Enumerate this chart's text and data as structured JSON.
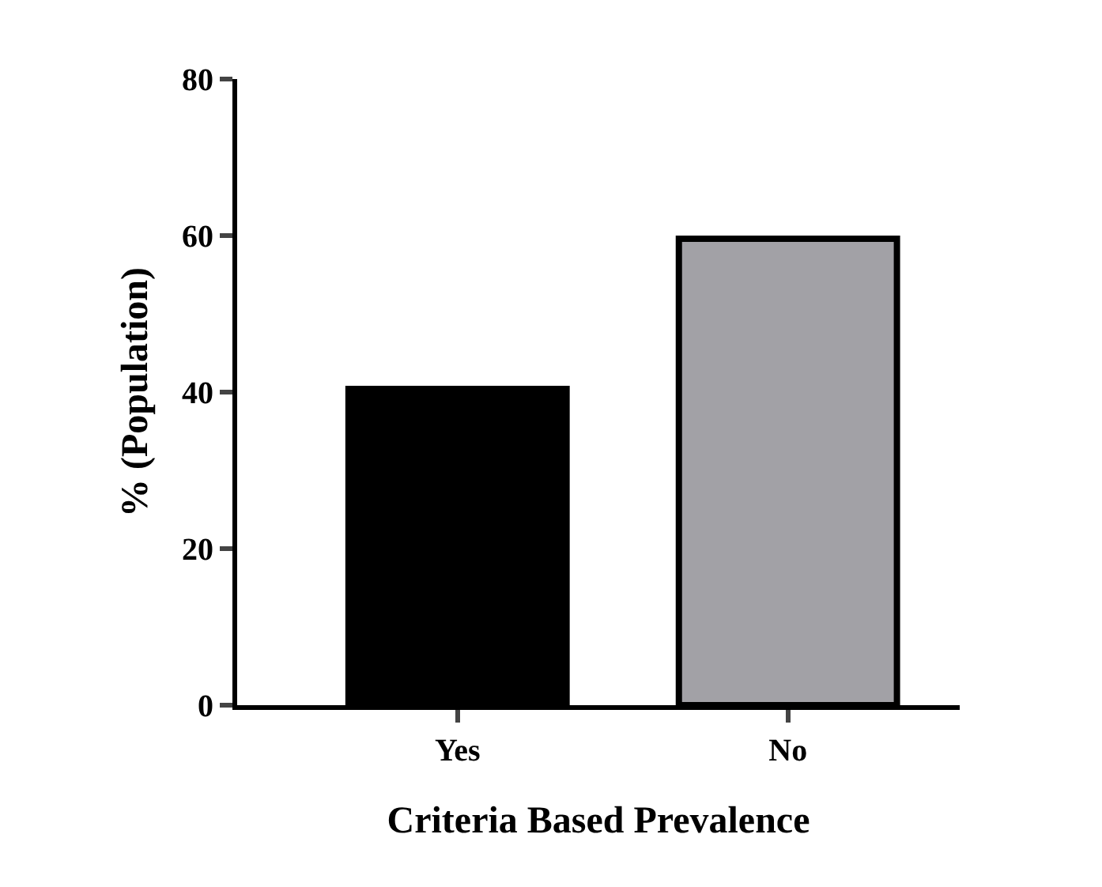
{
  "chart_data": {
    "type": "bar",
    "xlabel": "Criteria Based Prevalence",
    "ylabel": "% (Population)",
    "categories": [
      "Yes",
      "No"
    ],
    "values": [
      40.4,
      59.6
    ],
    "colors": [
      "#000000",
      "#a2a1a6"
    ],
    "ylim": [
      0,
      80
    ],
    "yticks": [
      0,
      20,
      40,
      60,
      80
    ]
  }
}
